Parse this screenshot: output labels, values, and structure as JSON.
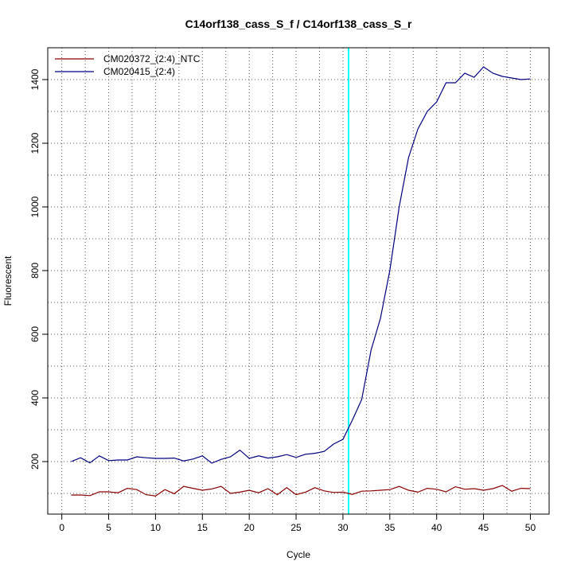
{
  "chart_data": {
    "type": "line",
    "title": "C14orf138_cass_S_f / C14orf138_cass_S_r",
    "xlabel": "Cycle",
    "ylabel": "Fluorescent",
    "xlim": [
      -1.5,
      52
    ],
    "ylim": [
      35,
      1500
    ],
    "xticks": [
      0,
      5,
      10,
      15,
      20,
      25,
      30,
      35,
      40,
      45,
      50
    ],
    "yticks": [
      200,
      400,
      600,
      800,
      1000,
      1200,
      1400
    ],
    "grid": true,
    "legend_position": "top-left",
    "threshold_cycle": 30.6,
    "threshold_color": "#00ffff",
    "x": [
      1,
      2,
      3,
      4,
      5,
      6,
      7,
      8,
      9,
      10,
      11,
      12,
      13,
      14,
      15,
      16,
      17,
      18,
      19,
      20,
      21,
      22,
      23,
      24,
      25,
      26,
      27,
      28,
      29,
      30,
      31,
      32,
      33,
      34,
      35,
      36,
      37,
      38,
      39,
      40,
      41,
      42,
      43,
      44,
      45,
      46,
      47,
      48,
      49,
      50
    ],
    "series": [
      {
        "name": "CM020372_(2:4)_NTC",
        "color": "#8b0000",
        "values": [
          95,
          95,
          93,
          105,
          105,
          102,
          116,
          112,
          96,
          92,
          112,
          99,
          122,
          116,
          110,
          114,
          122,
          100,
          104,
          110,
          102,
          115,
          96,
          118,
          96,
          104,
          118,
          108,
          103,
          104,
          97,
          107,
          108,
          110,
          112,
          122,
          110,
          104,
          116,
          113,
          105,
          121,
          113,
          115,
          110,
          115,
          125,
          107,
          116,
          115
        ]
      },
      {
        "name": "CM020415_(2:4)",
        "color": "#000080",
        "values": [
          200,
          212,
          196,
          218,
          203,
          205,
          205,
          215,
          212,
          210,
          210,
          211,
          202,
          208,
          218,
          195,
          207,
          215,
          236,
          210,
          218,
          211,
          215,
          222,
          213,
          223,
          226,
          232,
          255,
          270,
          330,
          395,
          550,
          650,
          800,
          1000,
          1155,
          1245,
          1300,
          1330,
          1390,
          1390,
          1420,
          1407,
          1440,
          1420,
          1410,
          1405,
          1400,
          1402
        ]
      }
    ]
  }
}
